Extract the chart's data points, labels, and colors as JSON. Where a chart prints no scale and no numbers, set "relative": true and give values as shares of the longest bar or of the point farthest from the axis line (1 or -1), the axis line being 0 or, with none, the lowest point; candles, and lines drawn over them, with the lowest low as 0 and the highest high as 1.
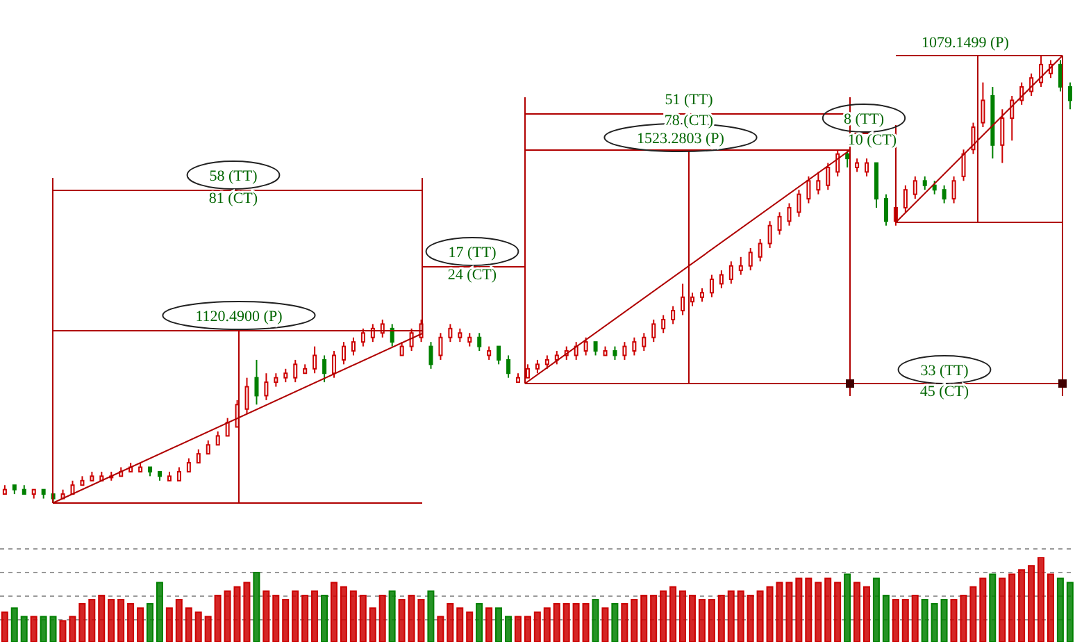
{
  "chart_data": [
    {
      "type": "candlestick",
      "relative": true,
      "annotations": [
        "58 (TT)",
        "81 (CT)",
        "1120.4900 (P)",
        "17 (TT)",
        "24 (CT)",
        "51 (TT)",
        "78 (CT)",
        "1523.2803 (P)",
        "8 (TT)",
        "10 (CT)",
        "33 (TT)",
        "45 (CT)",
        "1079.1499 (P)"
      ],
      "categories": [
        null,
        null,
        null,
        null,
        null,
        null,
        null,
        null,
        null,
        null,
        null,
        null,
        null,
        null,
        null,
        null,
        null,
        null,
        null,
        null,
        null,
        null,
        null,
        null,
        null,
        null,
        null,
        null,
        null,
        null,
        null,
        null,
        null,
        null,
        null,
        null,
        null,
        null,
        null,
        null,
        null,
        null,
        null,
        null,
        null,
        null,
        null,
        null,
        null,
        null,
        null,
        null,
        null,
        null,
        null,
        null,
        null,
        null,
        null,
        null,
        null,
        null,
        null,
        null,
        null,
        null,
        null,
        null,
        null,
        null,
        null,
        null,
        null,
        null,
        null,
        null,
        null,
        null,
        null,
        null,
        null,
        null,
        null,
        null,
        null,
        null,
        null,
        null,
        null,
        null,
        null,
        null,
        null,
        null,
        null,
        null,
        null,
        null,
        null,
        null,
        null,
        null,
        null,
        null,
        null,
        null,
        null,
        null,
        null,
        null,
        null
      ],
      "ohlc": [
        [
          0.02,
          0.04,
          0.02,
          0.03
        ],
        [
          0.04,
          0.04,
          0.02,
          0.03
        ],
        [
          0.03,
          0.04,
          0.02,
          0.02
        ],
        [
          0.02,
          0.03,
          0.01,
          0.03
        ],
        [
          0.03,
          0.03,
          0.01,
          0.02
        ],
        [
          0.02,
          0.02,
          0,
          0.01
        ],
        [
          0.01,
          0.03,
          0.01,
          0.02
        ],
        [
          0.02,
          0.05,
          0.02,
          0.04
        ],
        [
          0.04,
          0.06,
          0.04,
          0.05
        ],
        [
          0.05,
          0.07,
          0.05,
          0.06
        ],
        [
          0.05,
          0.07,
          0.05,
          0.06
        ],
        [
          0.06,
          0.07,
          0.05,
          0.06
        ],
        [
          0.06,
          0.08,
          0.06,
          0.07
        ],
        [
          0.07,
          0.09,
          0.07,
          0.08
        ],
        [
          0.07,
          0.09,
          0.07,
          0.08
        ],
        [
          0.08,
          0.08,
          0.06,
          0.07
        ],
        [
          0.07,
          0.07,
          0.05,
          0.06
        ],
        [
          0.05,
          0.07,
          0.05,
          0.06
        ],
        [
          0.05,
          0.08,
          0.05,
          0.07
        ],
        [
          0.07,
          0.1,
          0.07,
          0.09
        ],
        [
          0.09,
          0.12,
          0.09,
          0.11
        ],
        [
          0.11,
          0.14,
          0.11,
          0.13
        ],
        [
          0.13,
          0.16,
          0.13,
          0.15
        ],
        [
          0.15,
          0.19,
          0.15,
          0.18
        ],
        [
          0.17,
          0.23,
          0.17,
          0.22
        ],
        [
          0.21,
          0.28,
          0.2,
          0.26
        ],
        [
          0.28,
          0.32,
          0.22,
          0.24
        ],
        [
          0.24,
          0.29,
          0.23,
          0.27
        ],
        [
          0.27,
          0.29,
          0.26,
          0.28
        ],
        [
          0.28,
          0.3,
          0.27,
          0.29
        ],
        [
          0.28,
          0.32,
          0.27,
          0.31
        ],
        [
          0.29,
          0.31,
          0.29,
          0.3
        ],
        [
          0.3,
          0.35,
          0.29,
          0.33
        ],
        [
          0.32,
          0.33,
          0.27,
          0.29
        ],
        [
          0.29,
          0.34,
          0.28,
          0.33
        ],
        [
          0.32,
          0.36,
          0.31,
          0.35
        ],
        [
          0.34,
          0.37,
          0.33,
          0.36
        ],
        [
          0.36,
          0.39,
          0.35,
          0.38
        ],
        [
          0.37,
          0.4,
          0.36,
          0.39
        ],
        [
          0.38,
          0.41,
          0.37,
          0.4
        ],
        [
          0.39,
          0.4,
          0.35,
          0.36
        ],
        [
          0.33,
          0.36,
          0.33,
          0.35
        ],
        [
          0.35,
          0.39,
          0.34,
          0.38
        ],
        [
          0.37,
          0.41,
          0.36,
          0.4
        ],
        [
          0.35,
          0.36,
          0.3,
          0.31
        ],
        [
          0.33,
          0.38,
          0.32,
          0.37
        ],
        [
          0.37,
          0.4,
          0.36,
          0.39
        ],
        [
          0.37,
          0.39,
          0.36,
          0.38
        ],
        [
          0.36,
          0.38,
          0.35,
          0.37
        ],
        [
          0.37,
          0.38,
          0.34,
          0.35
        ],
        [
          0.33,
          0.35,
          0.32,
          0.34
        ],
        [
          0.35,
          0.35,
          0.31,
          0.32
        ],
        [
          0.32,
          0.33,
          0.28,
          0.29
        ],
        [
          0.27,
          0.29,
          0.27,
          0.28
        ],
        [
          0.28,
          0.31,
          0.28,
          0.3
        ],
        [
          0.3,
          0.32,
          0.29,
          0.31
        ],
        [
          0.31,
          0.33,
          0.3,
          0.32
        ],
        [
          0.32,
          0.34,
          0.31,
          0.33
        ],
        [
          0.33,
          0.35,
          0.32,
          0.34
        ],
        [
          0.33,
          0.36,
          0.32,
          0.35
        ],
        [
          0.34,
          0.37,
          0.33,
          0.36
        ],
        [
          0.36,
          0.36,
          0.33,
          0.34
        ],
        [
          0.33,
          0.35,
          0.33,
          0.34
        ],
        [
          0.34,
          0.35,
          0.32,
          0.33
        ],
        [
          0.33,
          0.36,
          0.32,
          0.35
        ],
        [
          0.34,
          0.37,
          0.33,
          0.36
        ],
        [
          0.35,
          0.38,
          0.34,
          0.37
        ],
        [
          0.37,
          0.41,
          0.36,
          0.4
        ],
        [
          0.39,
          0.42,
          0.38,
          0.41
        ],
        [
          0.41,
          0.44,
          0.4,
          0.43
        ],
        [
          0.43,
          0.49,
          0.42,
          0.46
        ],
        [
          0.45,
          0.47,
          0.44,
          0.46
        ],
        [
          0.46,
          0.48,
          0.45,
          0.47
        ],
        [
          0.47,
          0.51,
          0.46,
          0.5
        ],
        [
          0.49,
          0.52,
          0.48,
          0.51
        ],
        [
          0.5,
          0.54,
          0.49,
          0.53
        ],
        [
          0.52,
          0.55,
          0.51,
          0.53
        ],
        [
          0.53,
          0.57,
          0.52,
          0.56
        ],
        [
          0.55,
          0.59,
          0.54,
          0.58
        ],
        [
          0.58,
          0.63,
          0.57,
          0.62
        ],
        [
          0.61,
          0.65,
          0.6,
          0.64
        ],
        [
          0.63,
          0.67,
          0.62,
          0.66
        ],
        [
          0.65,
          0.7,
          0.64,
          0.69
        ],
        [
          0.68,
          0.73,
          0.67,
          0.72
        ],
        [
          0.7,
          0.74,
          0.69,
          0.72
        ],
        [
          0.71,
          0.76,
          0.7,
          0.75
        ],
        [
          0.74,
          0.79,
          0.73,
          0.78
        ],
        [
          0.78,
          0.79,
          0.75,
          0.77
        ],
        [
          0.75,
          0.77,
          0.74,
          0.76
        ],
        [
          0.74,
          0.77,
          0.73,
          0.76
        ],
        [
          0.76,
          0.76,
          0.66,
          0.68
        ],
        [
          0.68,
          0.69,
          0.62,
          0.63
        ],
        [
          0.63,
          0.67,
          0.62,
          0.66
        ],
        [
          0.66,
          0.71,
          0.65,
          0.7
        ],
        [
          0.69,
          0.73,
          0.68,
          0.72
        ],
        [
          0.72,
          0.73,
          0.7,
          0.71
        ],
        [
          0.71,
          0.72,
          0.69,
          0.7
        ],
        [
          0.7,
          0.71,
          0.67,
          0.68
        ],
        [
          0.68,
          0.73,
          0.67,
          0.72
        ],
        [
          0.73,
          0.79,
          0.72,
          0.78
        ],
        [
          0.79,
          0.85,
          0.78,
          0.84
        ],
        [
          0.85,
          0.94,
          0.84,
          0.9
        ],
        [
          0.91,
          0.93,
          0.77,
          0.8
        ],
        [
          0.8,
          0.88,
          0.76,
          0.86
        ],
        [
          0.86,
          0.91,
          0.81,
          0.9
        ],
        [
          0.9,
          0.94,
          0.89,
          0.93
        ],
        [
          0.92,
          0.96,
          0.91,
          0.95
        ],
        [
          0.94,
          1,
          0.93,
          0.98
        ],
        [
          0.96,
          0.99,
          0.95,
          0.98
        ],
        [
          0.98,
          0.99,
          0.92,
          0.93
        ],
        [
          0.93,
          0.94,
          0.88,
          0.9
        ]
      ],
      "colors": [
        "#cc0000",
        "#008000",
        "#008000",
        "#cc0000",
        "#008000",
        "#008000",
        "#cc0000",
        "#cc0000",
        "#cc0000",
        "#cc0000",
        "#cc0000",
        "#cc0000",
        "#cc0000",
        "#cc0000",
        "#cc0000",
        "#008000",
        "#008000",
        "#cc0000",
        "#cc0000",
        "#cc0000",
        "#cc0000",
        "#cc0000",
        "#cc0000",
        "#cc0000",
        "#cc0000",
        "#cc0000",
        "#008000",
        "#cc0000",
        "#cc0000",
        "#cc0000",
        "#cc0000",
        "#cc0000",
        "#cc0000",
        "#008000",
        "#cc0000",
        "#cc0000",
        "#cc0000",
        "#cc0000",
        "#cc0000",
        "#cc0000",
        "#008000",
        "#cc0000",
        "#cc0000",
        "#cc0000",
        "#008000",
        "#cc0000",
        "#cc0000",
        "#cc0000",
        "#cc0000",
        "#008000",
        "#cc0000",
        "#008000",
        "#008000",
        "#cc0000",
        "#cc0000",
        "#cc0000",
        "#cc0000",
        "#cc0000",
        "#cc0000",
        "#cc0000",
        "#cc0000",
        "#008000",
        "#cc0000",
        "#008000",
        "#cc0000",
        "#cc0000",
        "#cc0000",
        "#cc0000",
        "#cc0000",
        "#cc0000",
        "#cc0000",
        "#cc0000",
        "#cc0000",
        "#cc0000",
        "#cc0000",
        "#cc0000",
        "#cc0000",
        "#cc0000",
        "#cc0000",
        "#cc0000",
        "#cc0000",
        "#cc0000",
        "#cc0000",
        "#cc0000",
        "#cc0000",
        "#cc0000",
        "#cc0000",
        "#008000",
        "#cc0000",
        "#cc0000",
        "#008000",
        "#008000",
        "#cc0000",
        "#cc0000",
        "#cc0000",
        "#008000",
        "#008000",
        "#008000",
        "#cc0000",
        "#cc0000",
        "#cc0000",
        "#cc0000",
        "#008000",
        "#cc0000",
        "#cc0000",
        "#cc0000",
        "#cc0000",
        "#cc0000",
        "#cc0000",
        "#008000",
        "#008000"
      ]
    },
    {
      "type": "bar",
      "relative": true,
      "grid": true,
      "categories": [
        null,
        null,
        null,
        null,
        null,
        null,
        null,
        null,
        null,
        null,
        null,
        null,
        null,
        null,
        null,
        null,
        null,
        null,
        null,
        null,
        null,
        null,
        null,
        null,
        null,
        null,
        null,
        null,
        null,
        null,
        null,
        null,
        null,
        null,
        null,
        null,
        null,
        null,
        null,
        null,
        null,
        null,
        null,
        null,
        null,
        null,
        null,
        null,
        null,
        null,
        null,
        null,
        null,
        null,
        null,
        null,
        null,
        null,
        null,
        null,
        null,
        null,
        null,
        null,
        null,
        null,
        null,
        null,
        null,
        null,
        null,
        null,
        null,
        null,
        null,
        null,
        null,
        null,
        null,
        null,
        null,
        null,
        null,
        null,
        null,
        null,
        null,
        null,
        null,
        null,
        null,
        null,
        null,
        null,
        null,
        null,
        null,
        null,
        null,
        null,
        null,
        null,
        null,
        null,
        null,
        null,
        null,
        null,
        null,
        null,
        null
      ],
      "values": [
        0.35,
        0.4,
        0.3,
        0.3,
        0.3,
        0.3,
        0.25,
        0.3,
        0.45,
        0.5,
        0.55,
        0.5,
        0.5,
        0.45,
        0.4,
        0.45,
        0.7,
        0.4,
        0.5,
        0.4,
        0.35,
        0.3,
        0.55,
        0.6,
        0.65,
        0.7,
        0.82,
        0.6,
        0.55,
        0.5,
        0.6,
        0.55,
        0.6,
        0.55,
        0.7,
        0.65,
        0.6,
        0.55,
        0.4,
        0.55,
        0.6,
        0.5,
        0.55,
        0.5,
        0.6,
        0.3,
        0.45,
        0.4,
        0.35,
        0.45,
        0.4,
        0.4,
        0.3,
        0.3,
        0.3,
        0.35,
        0.4,
        0.45,
        0.45,
        0.45,
        0.45,
        0.5,
        0.4,
        0.45,
        0.45,
        0.5,
        0.55,
        0.55,
        0.6,
        0.65,
        0.6,
        0.55,
        0.5,
        0.5,
        0.55,
        0.6,
        0.6,
        0.55,
        0.6,
        0.65,
        0.7,
        0.7,
        0.75,
        0.75,
        0.7,
        0.75,
        0.7,
        0.8,
        0.7,
        0.65,
        0.75,
        0.55,
        0.5,
        0.5,
        0.55,
        0.5,
        0.45,
        0.5,
        0.5,
        0.55,
        0.65,
        0.75,
        0.8,
        0.75,
        0.8,
        0.85,
        0.9,
        1,
        0.8,
        0.75,
        0.7
      ],
      "colors": [
        "#cc0000",
        "#008000",
        "#008000",
        "#cc0000",
        "#008000",
        "#008000",
        "#cc0000",
        "#cc0000",
        "#cc0000",
        "#cc0000",
        "#cc0000",
        "#cc0000",
        "#cc0000",
        "#cc0000",
        "#cc0000",
        "#008000",
        "#008000",
        "#cc0000",
        "#cc0000",
        "#cc0000",
        "#cc0000",
        "#cc0000",
        "#cc0000",
        "#cc0000",
        "#cc0000",
        "#cc0000",
        "#008000",
        "#cc0000",
        "#cc0000",
        "#cc0000",
        "#cc0000",
        "#cc0000",
        "#cc0000",
        "#008000",
        "#cc0000",
        "#cc0000",
        "#cc0000",
        "#cc0000",
        "#cc0000",
        "#cc0000",
        "#008000",
        "#cc0000",
        "#cc0000",
        "#cc0000",
        "#008000",
        "#cc0000",
        "#cc0000",
        "#cc0000",
        "#cc0000",
        "#008000",
        "#cc0000",
        "#008000",
        "#008000",
        "#cc0000",
        "#cc0000",
        "#cc0000",
        "#cc0000",
        "#cc0000",
        "#cc0000",
        "#cc0000",
        "#cc0000",
        "#008000",
        "#cc0000",
        "#008000",
        "#cc0000",
        "#cc0000",
        "#cc0000",
        "#cc0000",
        "#cc0000",
        "#cc0000",
        "#cc0000",
        "#cc0000",
        "#cc0000",
        "#cc0000",
        "#cc0000",
        "#cc0000",
        "#cc0000",
        "#cc0000",
        "#cc0000",
        "#cc0000",
        "#cc0000",
        "#cc0000",
        "#cc0000",
        "#cc0000",
        "#cc0000",
        "#cc0000",
        "#cc0000",
        "#008000",
        "#cc0000",
        "#cc0000",
        "#008000",
        "#008000",
        "#cc0000",
        "#cc0000",
        "#cc0000",
        "#008000",
        "#008000",
        "#008000",
        "#cc0000",
        "#cc0000",
        "#cc0000",
        "#cc0000",
        "#008000",
        "#cc0000",
        "#cc0000",
        "#cc0000",
        "#cc0000",
        "#cc0000",
        "#cc0000",
        "#008000",
        "#008000"
      ]
    }
  ]
}
